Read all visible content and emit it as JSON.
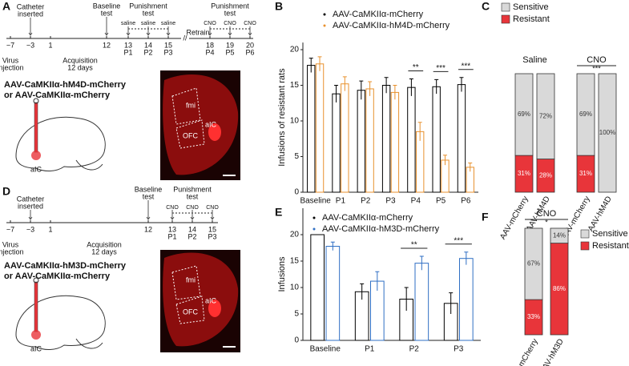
{
  "panels": [
    "A",
    "B",
    "C",
    "D",
    "E",
    "F"
  ],
  "panel_a": {
    "days": [
      "−7",
      "−3",
      "1",
      "12",
      "13",
      "14",
      "15",
      "18",
      "19",
      "20"
    ],
    "catheter": [
      "Catheter",
      "inserted"
    ],
    "baseline": [
      "Baseline",
      "test"
    ],
    "punish1": [
      "Punishment",
      "test"
    ],
    "punish2": [
      "Punishment",
      "test"
    ],
    "saline": [
      "saline",
      "saline",
      "saline"
    ],
    "retrain": "Retrain",
    "cno": [
      "CNO",
      "CNO",
      "CNO"
    ],
    "sessions": [
      "P1",
      "P2",
      "P3",
      "P4",
      "P5",
      "P6"
    ],
    "virus": [
      "Virus",
      "injection"
    ],
    "acquisition": [
      "Acquisition",
      "12 days"
    ],
    "construct": [
      "AAV-CaMKIIα-hM4D-mCherry",
      "or AAV-CaMKIIα-mCherry"
    ],
    "region": "aIC",
    "histology": [
      "fmi",
      "OFC",
      "aIC"
    ]
  },
  "panel_d": {
    "days": [
      "−7",
      "−3",
      "1",
      "12",
      "13",
      "14",
      "15"
    ],
    "catheter": [
      "Catheter",
      "inserted"
    ],
    "baseline": [
      "Baseline",
      "test"
    ],
    "punish": [
      "Punishment",
      "test"
    ],
    "cno": [
      "CNO",
      "CNO",
      "CNO"
    ],
    "sessions": [
      "P1",
      "P2",
      "P3"
    ],
    "virus": [
      "Virus",
      "injection"
    ],
    "acquisition": [
      "Acquisition",
      "12 days"
    ],
    "construct": [
      "AAV-CaMKIIα-hM3D-mCherry",
      "or AAV-CaMKIIα-mCherry"
    ],
    "region": "aIC",
    "histology": [
      "fmi",
      "OFC",
      "aIC"
    ]
  },
  "chart_data": [
    {
      "type": "bar",
      "ylabel": "Infusions of resistant rats",
      "categories": [
        "Baseline",
        "P1",
        "P2",
        "P3",
        "P4",
        "P5",
        "P6"
      ],
      "ylim": [
        0,
        21
      ],
      "yticks": [
        0,
        5,
        10,
        15,
        20
      ],
      "series": [
        {
          "name": "AAV-CaMKIIα-mCherry",
          "color": "#000000",
          "values": [
            17.8,
            13.8,
            14.3,
            15,
            14.7,
            14.8,
            15.1
          ],
          "errors": [
            1,
            1.2,
            1.3,
            1.1,
            1.2,
            1,
            1
          ]
        },
        {
          "name": "AAV-CaMKIIα-hM4D-mCherry",
          "color": "#e8912d",
          "values": [
            18,
            15.2,
            14.5,
            14,
            8.5,
            4.5,
            3.5
          ],
          "errors": [
            1,
            1,
            1,
            1,
            1.3,
            0.7,
            0.6
          ]
        }
      ],
      "annotations": [
        {
          "category": "P4",
          "text": "**"
        },
        {
          "category": "P5",
          "text": "***"
        },
        {
          "category": "P6",
          "text": "***"
        }
      ]
    },
    {
      "type": "stacked_bar",
      "categories": [
        "AAV-mCherry",
        "AAV-hM4D",
        "AAV-mCherry",
        "AAV-hM4D"
      ],
      "groups": [
        {
          "name": "Saline"
        },
        {
          "name": "CNO",
          "annotation": "***"
        }
      ],
      "ylim": [
        0,
        100
      ],
      "series": [
        {
          "name": "Sensitive",
          "color": "#d9d9d9",
          "values": [
            69,
            72,
            69,
            100
          ],
          "value_labels": [
            "69%",
            "72%",
            "69%",
            "100%"
          ]
        },
        {
          "name": "Resistant",
          "color": "#e8353a",
          "values": [
            31,
            28,
            31,
            0
          ],
          "value_labels": [
            "31%",
            "28%",
            "31%",
            null
          ]
        }
      ]
    },
    {
      "type": "bar",
      "ylabel": "Infusions",
      "categories": [
        "Baseline",
        "P1",
        "P2",
        "P3"
      ],
      "ylim": [
        0,
        25
      ],
      "yticks": [
        0,
        5,
        10,
        15,
        20
      ],
      "series": [
        {
          "name": "AAV-CaMKIIα-mCherry",
          "color": "#000000",
          "values": [
            20,
            9.2,
            7.8,
            7
          ],
          "errors": [
            0,
            1.5,
            2.2,
            2
          ]
        },
        {
          "name": "AAV-CaMKIIα-hM3D-mCherry",
          "color": "#2f6fc4",
          "values": [
            17.8,
            11.2,
            14.6,
            15.5
          ],
          "errors": [
            0.8,
            1.8,
            1.3,
            1.2
          ]
        }
      ],
      "annotations": [
        {
          "category": "P2",
          "text": "**"
        },
        {
          "category": "P3",
          "text": "***"
        }
      ]
    },
    {
      "type": "stacked_bar",
      "categories": [
        "AAV-mCherry",
        "AAV-hM3D"
      ],
      "groups": [
        {
          "name": "CNO",
          "annotation": "*"
        }
      ],
      "ylim": [
        0,
        100
      ],
      "series": [
        {
          "name": "Sensitive",
          "color": "#d9d9d9",
          "values": [
            67,
            14
          ],
          "value_labels": [
            "67%",
            "14%"
          ]
        },
        {
          "name": "Resistant",
          "color": "#e8353a",
          "values": [
            33,
            86
          ],
          "value_labels": [
            "33%",
            "86%"
          ]
        }
      ]
    }
  ]
}
